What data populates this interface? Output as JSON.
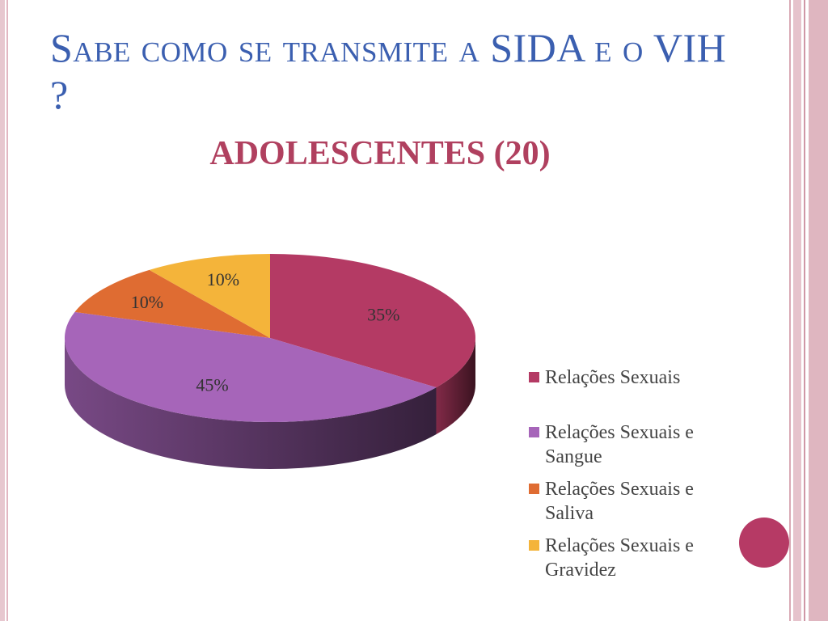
{
  "slide": {
    "title": "Sabe como se transmite a SIDA e o VIH ?",
    "subtitle": "ADOLESCENTES (20)"
  },
  "colors": {
    "title": "#3b5fb0",
    "subtitle": "#b0405f",
    "accent_dot": "#b63a65"
  },
  "chart_data": {
    "type": "pie",
    "title": "",
    "categories": [
      "Relações Sexuais",
      "Relações Sexuais e Sangue",
      "Relações Sexuais e Saliva",
      "Relações Sexuais e Gravidez"
    ],
    "values": [
      35,
      45,
      10,
      10
    ],
    "data_labels": [
      "35%",
      "45%",
      "10%",
      "10%"
    ],
    "colors": [
      "#b43a64",
      "#a665b9",
      "#df6c32",
      "#f4b43a"
    ],
    "legend_position": "right",
    "style": "3d"
  }
}
